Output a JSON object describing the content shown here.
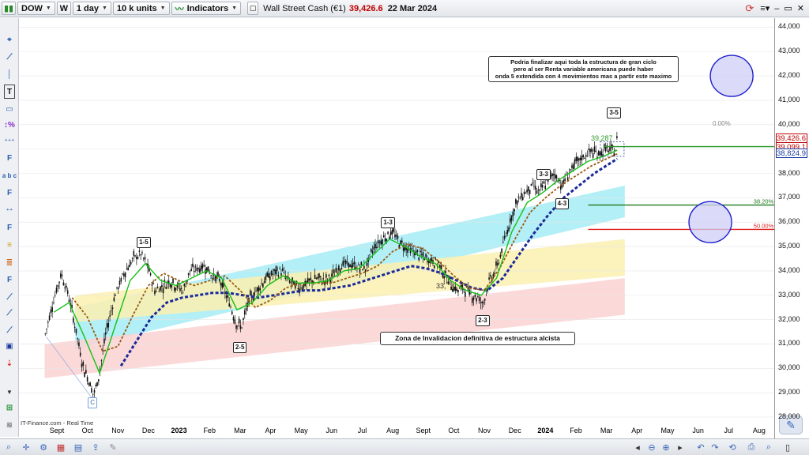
{
  "toolbar": {
    "symbol": "DOW",
    "period_icon": "W",
    "timeframe": "1 day",
    "units": "10 k units",
    "indicators_label": "Indicators",
    "instrument_name": "Wall Street Cash (€1)",
    "last_price": "39,426.6",
    "date": "22 Mar 2024",
    "price_color": "#c00000"
  },
  "chart_data": {
    "type": "line",
    "title": "",
    "xlabel": "",
    "ylabel": "",
    "ylim": [
      27800,
      44700
    ],
    "yticks": [
      28000,
      29000,
      30000,
      31000,
      32000,
      33000,
      34000,
      35000,
      36000,
      37000,
      38000,
      39000,
      40000,
      41000,
      42000,
      43000,
      44000
    ],
    "ytick_labels": [
      "28,000",
      "29,000",
      "30,000",
      "31,000",
      "32,000",
      "33,000",
      "34,000",
      "35,000",
      "36,000",
      "37,000",
      "38,000",
      "39,000",
      "40,000",
      "41,000",
      "42,000",
      "43,000",
      "44,000"
    ],
    "x_months": [
      {
        "label": "Sept",
        "m": 0.4
      },
      {
        "label": "Oct",
        "m": 1.4
      },
      {
        "label": "Nov",
        "m": 2.4
      },
      {
        "label": "Dec",
        "m": 3.4
      },
      {
        "label": "2023",
        "m": 4.4,
        "bold": true
      },
      {
        "label": "Feb",
        "m": 5.4
      },
      {
        "label": "Mar",
        "m": 6.4
      },
      {
        "label": "Apr",
        "m": 7.4
      },
      {
        "label": "May",
        "m": 8.4
      },
      {
        "label": "Jun",
        "m": 9.4
      },
      {
        "label": "Jul",
        "m": 10.4
      },
      {
        "label": "Aug",
        "m": 11.4
      },
      {
        "label": "Sept",
        "m": 12.4
      },
      {
        "label": "Oct",
        "m": 13.4
      },
      {
        "label": "Nov",
        "m": 14.4
      },
      {
        "label": "Dec",
        "m": 15.4
      },
      {
        "label": "2024",
        "m": 16.4,
        "bold": true
      },
      {
        "label": "Feb",
        "m": 17.4
      },
      {
        "label": "Mar",
        "m": 18.4
      },
      {
        "label": "Apr",
        "m": 19.4
      },
      {
        "label": "May",
        "m": 20.4
      },
      {
        "label": "Jun",
        "m": 21.4
      },
      {
        "label": "Jul",
        "m": 22.4
      },
      {
        "label": "Aug",
        "m": 23.4
      }
    ],
    "price_path": [
      [
        0.0,
        31300
      ],
      [
        0.25,
        32600
      ],
      [
        0.55,
        33900
      ],
      [
        0.8,
        32900
      ],
      [
        1.05,
        31400
      ],
      [
        1.25,
        30100
      ],
      [
        1.45,
        29500
      ],
      [
        1.6,
        28900
      ],
      [
        1.75,
        29500
      ],
      [
        2.0,
        31400
      ],
      [
        2.3,
        33000
      ],
      [
        2.6,
        33900
      ],
      [
        2.9,
        34500
      ],
      [
        3.15,
        34700
      ],
      [
        3.4,
        34100
      ],
      [
        3.6,
        33200
      ],
      [
        3.9,
        33400
      ],
      [
        4.1,
        33600
      ],
      [
        4.3,
        33400
      ],
      [
        4.55,
        33200
      ],
      [
        4.75,
        34000
      ],
      [
        5.0,
        34100
      ],
      [
        5.25,
        34200
      ],
      [
        5.5,
        33800
      ],
      [
        5.75,
        33600
      ],
      [
        6.1,
        32500
      ],
      [
        6.3,
        31800
      ],
      [
        6.45,
        31700
      ],
      [
        6.7,
        32800
      ],
      [
        7.0,
        33300
      ],
      [
        7.25,
        33700
      ],
      [
        7.5,
        33900
      ],
      [
        7.75,
        34000
      ],
      [
        8.0,
        33600
      ],
      [
        8.3,
        33300
      ],
      [
        8.6,
        33500
      ],
      [
        8.9,
        33700
      ],
      [
        9.2,
        33600
      ],
      [
        9.45,
        33800
      ],
      [
        9.75,
        34300
      ],
      [
        10.1,
        34200
      ],
      [
        10.5,
        34100
      ],
      [
        10.8,
        35000
      ],
      [
        11.15,
        35400
      ],
      [
        11.4,
        35600
      ],
      [
        11.6,
        35200
      ],
      [
        11.9,
        34900
      ],
      [
        12.2,
        34700
      ],
      [
        12.5,
        34500
      ],
      [
        12.9,
        34300
      ],
      [
        13.2,
        33600
      ],
      [
        13.5,
        33200
      ],
      [
        13.75,
        33300
      ],
      [
        14.0,
        33000
      ],
      [
        14.2,
        32900
      ],
      [
        14.35,
        32600
      ],
      [
        14.5,
        33400
      ],
      [
        14.8,
        34100
      ],
      [
        15.05,
        35200
      ],
      [
        15.25,
        36100
      ],
      [
        15.45,
        36800
      ],
      [
        15.7,
        37200
      ],
      [
        16.0,
        37500
      ],
      [
        16.2,
        37200
      ],
      [
        16.45,
        37700
      ],
      [
        16.7,
        38000
      ],
      [
        16.95,
        37500
      ],
      [
        17.15,
        38000
      ],
      [
        17.4,
        38400
      ],
      [
        17.65,
        38700
      ],
      [
        17.9,
        38900
      ],
      [
        18.15,
        38800
      ],
      [
        18.4,
        39000
      ],
      [
        18.55,
        38900
      ],
      [
        18.7,
        39000
      ],
      [
        18.75,
        39426.6
      ]
    ],
    "ma_fast_green": [
      [
        0.3,
        32300
      ],
      [
        0.8,
        32700
      ],
      [
        1.3,
        31300
      ],
      [
        1.8,
        29800
      ],
      [
        2.3,
        31700
      ],
      [
        2.8,
        33600
      ],
      [
        3.3,
        34300
      ],
      [
        3.8,
        33600
      ],
      [
        4.3,
        33400
      ],
      [
        4.8,
        33700
      ],
      [
        5.3,
        34000
      ],
      [
        5.8,
        33700
      ],
      [
        6.3,
        32400
      ],
      [
        6.8,
        32700
      ],
      [
        7.3,
        33400
      ],
      [
        7.8,
        33800
      ],
      [
        8.3,
        33500
      ],
      [
        8.8,
        33500
      ],
      [
        9.3,
        33600
      ],
      [
        9.8,
        34000
      ],
      [
        10.3,
        34100
      ],
      [
        10.8,
        34700
      ],
      [
        11.3,
        35300
      ],
      [
        11.8,
        35000
      ],
      [
        12.3,
        34600
      ],
      [
        12.8,
        34300
      ],
      [
        13.3,
        33600
      ],
      [
        13.8,
        33200
      ],
      [
        14.3,
        33000
      ],
      [
        14.8,
        33700
      ],
      [
        15.3,
        35600
      ],
      [
        15.8,
        36800
      ],
      [
        16.3,
        37200
      ],
      [
        16.8,
        37700
      ],
      [
        17.3,
        38100
      ],
      [
        17.8,
        38500
      ],
      [
        18.3,
        38700
      ],
      [
        18.75,
        38950
      ]
    ],
    "ma_mid_brown": [
      [
        0.9,
        32900
      ],
      [
        1.4,
        32100
      ],
      [
        1.9,
        30700
      ],
      [
        2.4,
        30900
      ],
      [
        2.9,
        32200
      ],
      [
        3.4,
        33400
      ],
      [
        3.9,
        33900
      ],
      [
        4.4,
        33600
      ],
      [
        4.9,
        33400
      ],
      [
        5.4,
        33600
      ],
      [
        5.9,
        33800
      ],
      [
        6.4,
        33200
      ],
      [
        6.9,
        32500
      ],
      [
        7.4,
        32800
      ],
      [
        7.9,
        33300
      ],
      [
        8.4,
        33500
      ],
      [
        8.9,
        33500
      ],
      [
        9.4,
        33500
      ],
      [
        9.9,
        33700
      ],
      [
        10.4,
        33900
      ],
      [
        10.9,
        34200
      ],
      [
        11.4,
        34800
      ],
      [
        11.9,
        35100
      ],
      [
        12.4,
        34900
      ],
      [
        12.9,
        34400
      ],
      [
        13.4,
        33800
      ],
      [
        13.9,
        33300
      ],
      [
        14.4,
        33200
      ],
      [
        14.9,
        34100
      ],
      [
        15.4,
        35300
      ],
      [
        15.9,
        36400
      ],
      [
        16.4,
        37000
      ],
      [
        16.9,
        37500
      ],
      [
        17.4,
        37900
      ],
      [
        17.9,
        38300
      ],
      [
        18.4,
        38600
      ],
      [
        18.75,
        38800
      ]
    ],
    "ma_slow_blue": [
      [
        2.5,
        30100
      ],
      [
        3.0,
        31100
      ],
      [
        3.5,
        32100
      ],
      [
        4.0,
        32700
      ],
      [
        4.5,
        32900
      ],
      [
        5.0,
        33000
      ],
      [
        5.5,
        33100
      ],
      [
        6.0,
        33100
      ],
      [
        6.5,
        33000
      ],
      [
        7.0,
        32900
      ],
      [
        7.5,
        33000
      ],
      [
        8.0,
        33100
      ],
      [
        8.5,
        33200
      ],
      [
        9.0,
        33200
      ],
      [
        9.5,
        33300
      ],
      [
        10.0,
        33400
      ],
      [
        10.5,
        33600
      ],
      [
        11.0,
        33800
      ],
      [
        11.5,
        34000
      ],
      [
        12.0,
        34200
      ],
      [
        12.5,
        34100
      ],
      [
        13.0,
        33900
      ],
      [
        13.5,
        33600
      ],
      [
        14.0,
        33300
      ],
      [
        14.5,
        33200
      ],
      [
        15.0,
        33700
      ],
      [
        15.5,
        34600
      ],
      [
        16.0,
        35500
      ],
      [
        16.5,
        36300
      ],
      [
        17.0,
        37000
      ],
      [
        17.5,
        37500
      ],
      [
        18.0,
        38000
      ],
      [
        18.5,
        38400
      ],
      [
        18.75,
        38600
      ]
    ],
    "band_cyan": {
      "start": [
        1.0,
        32500,
        30800
      ],
      "end": [
        19.0,
        37500,
        36200
      ]
    },
    "band_yellow": {
      "start": [
        1.0,
        33000,
        31900
      ],
      "end": [
        19.0,
        35300,
        33800
      ]
    },
    "band_red": {
      "start": [
        0.0,
        31000,
        29600
      ],
      "end": [
        19.0,
        33700,
        32200
      ]
    },
    "hlines": [
      {
        "name": "current-level-line",
        "y": 39099.1,
        "m1": 18.3,
        "m2": 24.9,
        "color": "#2e9a2e"
      },
      {
        "name": "fib-38-line",
        "y": 36700,
        "m1": 17.8,
        "m2": 23.9,
        "color": "#1e7a1e",
        "label": "38.20%"
      },
      {
        "name": "fib-50-line",
        "y": 35700,
        "m1": 17.8,
        "m2": 23.9,
        "color": "#e02020",
        "label": "50.00%"
      }
    ],
    "fib_top_label": "0.00%",
    "value_label_39287": "39,287",
    "value_label_33": "33,",
    "wave_labels": [
      {
        "text": "1-5",
        "m": 3.25,
        "y": 35200
      },
      {
        "text": "2-5",
        "m": 6.4,
        "y": 30900
      },
      {
        "text": "1-3",
        "m": 11.25,
        "y": 36000
      },
      {
        "text": "2-3",
        "m": 14.35,
        "y": 32000
      },
      {
        "text": "3-3",
        "m": 16.35,
        "y": 38000
      },
      {
        "text": "4-3",
        "m": 16.95,
        "y": 36800
      },
      {
        "text": "3-5",
        "m": 18.65,
        "y": 40500
      },
      {
        "text": "C",
        "m": 1.65,
        "y": 28600
      }
    ],
    "circles": [
      {
        "m": 22.5,
        "y": 42000,
        "rx": 27,
        "ry": 26
      },
      {
        "m": 21.8,
        "y": 36000,
        "rx": 27,
        "ry": 26
      }
    ],
    "notes": {
      "top_note": [
        "Podria finalizar aqui toda la estructura de gran ciclo",
        "pero al ser Renta variable americana puede haber",
        "onda 5 extendida con 4 movimientos mas a partir este maximo"
      ],
      "bottom_note": "Zona de Invalidacion definitiva de estructura alcista"
    },
    "price_tags": [
      {
        "text": "39,426.6",
        "y": 39426.6,
        "color": "#c00000"
      },
      {
        "text": "39,099.1",
        "y": 39099.1,
        "color": "#c00000"
      },
      {
        "text": "38,824.9",
        "y": 38824.9,
        "color": "#1a3aa0"
      }
    ],
    "watermark": "IT-Finance.com - Real Time"
  },
  "colors": {
    "candle": "#111111",
    "green_ma": "#16c016",
    "brown_ma": "#9a5a10",
    "blue_ma": "#1a2a9a",
    "band_cyan": "#a6ecf4",
    "band_yellow": "#fbf0b0",
    "band_red": "#fbd2d2"
  }
}
